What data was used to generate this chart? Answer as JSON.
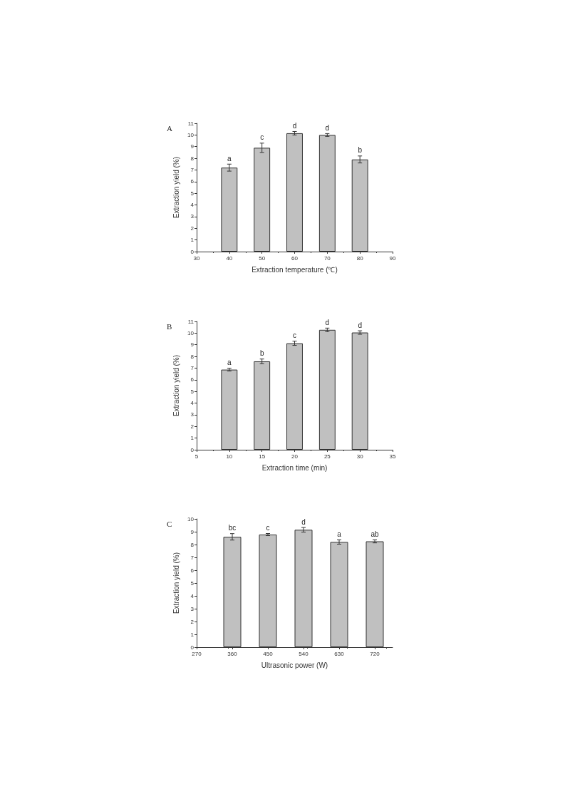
{
  "chart_data": [
    {
      "type": "bar",
      "title": "A",
      "xlabel": "Extraction temperature (℃)",
      "ylabel": "Extraction yield (%)",
      "x": [
        40,
        50,
        60,
        70,
        80
      ],
      "values": [
        7.2,
        8.9,
        10.15,
        10.0,
        7.9
      ],
      "errors": [
        0.3,
        0.4,
        0.15,
        0.12,
        0.3
      ],
      "color": "#c0c0c0",
      "xlim": [
        30,
        90
      ],
      "xticks": [
        30,
        40,
        50,
        60,
        70,
        80,
        90
      ],
      "ylim": [
        0,
        11
      ],
      "yticks": [
        0,
        1,
        2,
        3,
        4,
        5,
        6,
        7,
        8,
        9,
        10,
        11
      ],
      "annotations": [
        {
          "text": "a",
          "x": 40,
          "y": 7.5
        },
        {
          "text": "c",
          "x": 50,
          "y": 9.3
        },
        {
          "text": "d",
          "x": 60,
          "y": 10.3
        },
        {
          "text": "d",
          "x": 70,
          "y": 10.12
        },
        {
          "text": "b",
          "x": 80,
          "y": 8.2
        }
      ]
    },
    {
      "type": "bar",
      "title": "B",
      "xlabel": "Extraction time (min)",
      "ylabel": "Extraction yield (%)",
      "x": [
        10,
        15,
        20,
        25,
        30
      ],
      "values": [
        6.87,
        7.58,
        9.13,
        10.28,
        10.05
      ],
      "errors": [
        0.12,
        0.2,
        0.18,
        0.15,
        0.15
      ],
      "color": "#c0c0c0",
      "xlim": [
        5,
        35
      ],
      "xticks": [
        5,
        10,
        15,
        20,
        25,
        30,
        35
      ],
      "ylim": [
        0,
        11
      ],
      "yticks": [
        0,
        1,
        2,
        3,
        4,
        5,
        6,
        7,
        8,
        9,
        10,
        11
      ],
      "annotations": [
        {
          "text": "a",
          "x": 10,
          "y": 6.99
        },
        {
          "text": "b",
          "x": 15,
          "y": 7.78
        },
        {
          "text": "c",
          "x": 20,
          "y": 9.31
        },
        {
          "text": "d",
          "x": 25,
          "y": 10.43
        },
        {
          "text": "d",
          "x": 30,
          "y": 10.2
        }
      ]
    },
    {
      "type": "bar",
      "title": "C",
      "xlabel": "Ultrasonic power (W)",
      "ylabel": "Extraction yield (%)",
      "x": [
        360,
        450,
        540,
        630,
        720
      ],
      "values": [
        8.6,
        8.78,
        9.15,
        8.2,
        8.25
      ],
      "errors": [
        0.25,
        0.08,
        0.18,
        0.17,
        0.12
      ],
      "color": "#c0c0c0",
      "xlim": [
        270,
        765
      ],
      "xticks": [
        270,
        360,
        450,
        540,
        630,
        720
      ],
      "ylim": [
        0,
        10
      ],
      "yticks": [
        0,
        1,
        2,
        3,
        4,
        5,
        6,
        7,
        8,
        9,
        10
      ],
      "annotations": [
        {
          "text": "bc",
          "x": 360,
          "y": 8.85
        },
        {
          "text": "c",
          "x": 450,
          "y": 8.86
        },
        {
          "text": "d",
          "x": 540,
          "y": 9.33
        },
        {
          "text": "a",
          "x": 630,
          "y": 8.37
        },
        {
          "text": "ab",
          "x": 720,
          "y": 8.37
        }
      ]
    }
  ]
}
